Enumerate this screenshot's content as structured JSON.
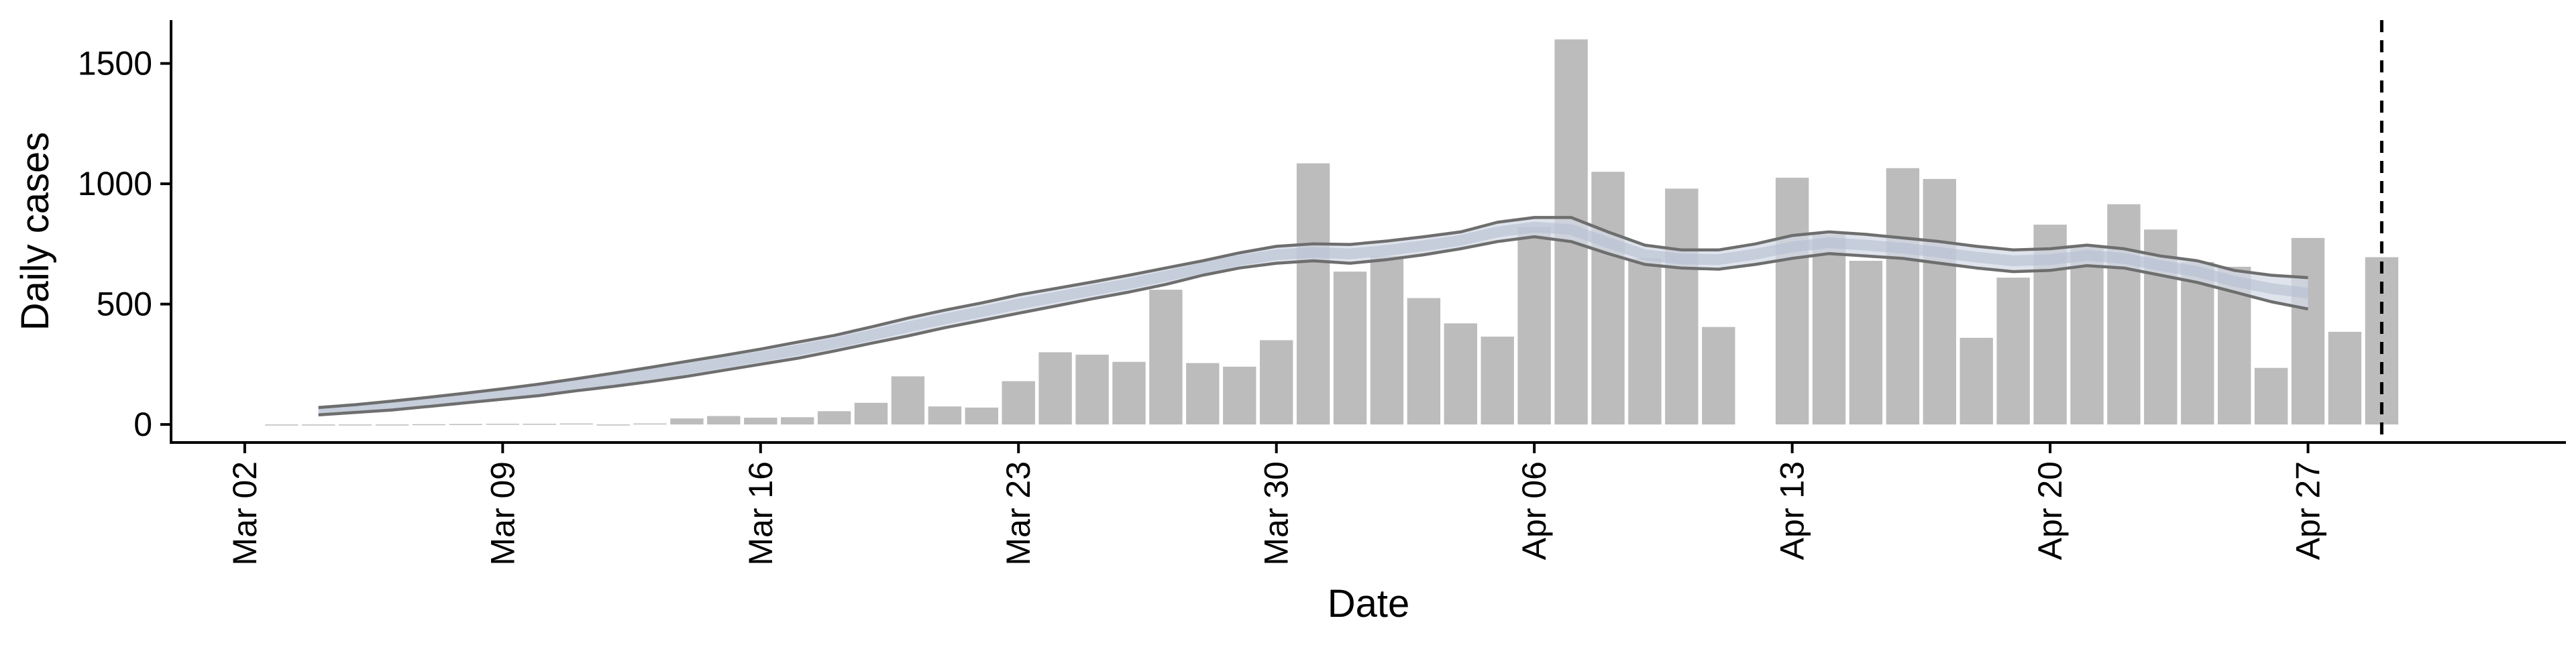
{
  "chart_data": {
    "type": "bar",
    "xlabel": "Date",
    "ylabel": "Daily cases",
    "x_axis": {
      "scale": "date",
      "range": [
        "2020-02-29",
        "2020-05-04"
      ],
      "ticks": [
        "2020-03-02",
        "2020-03-09",
        "2020-03-16",
        "2020-03-23",
        "2020-03-30",
        "2020-04-06",
        "2020-04-13",
        "2020-04-20",
        "2020-04-27"
      ],
      "tick_labels": [
        "Mar 02",
        "Mar 09",
        "Mar 16",
        "Mar 23",
        "Mar 30",
        "Apr 06",
        "Apr 13",
        "Apr 20",
        "Apr 27"
      ]
    },
    "y_axis": {
      "range": [
        -75,
        1680
      ],
      "ticks": [
        0,
        500,
        1000,
        1500
      ],
      "tick_labels": [
        "0",
        "500",
        "1000",
        "1500"
      ]
    },
    "grid": false,
    "legend": "none",
    "colors": {
      "bars": "#bcbcbc",
      "ribbon_fill": "#d3d9e6",
      "ribbon_center": "#b6bed0",
      "bound_lines": "#6e6e6e",
      "vline": "#000000",
      "axes": "#000000"
    },
    "daily_cases": {
      "start_date": "2020-03-03",
      "values": [
        0,
        0,
        0,
        0,
        1,
        2,
        3,
        3,
        4,
        0,
        4,
        25,
        35,
        28,
        30,
        55,
        90,
        200,
        75,
        70,
        180,
        300,
        290,
        260,
        560,
        255,
        240,
        350,
        1085,
        635,
        700,
        525,
        420,
        365,
        820,
        1600,
        1050,
        690,
        980,
        405,
        null,
        1025,
        790,
        680,
        1065,
        1020,
        360,
        610,
        830,
        745,
        915,
        810,
        675,
        655,
        235,
        775,
        385,
        695
      ]
    },
    "estimate_band": {
      "start_date": "2020-03-04",
      "upper": [
        70,
        82,
        97,
        113,
        130,
        148,
        168,
        190,
        213,
        237,
        262,
        287,
        313,
        342,
        370,
        405,
        442,
        475,
        505,
        538,
        565,
        592,
        620,
        650,
        680,
        713,
        740,
        750,
        748,
        762,
        780,
        800,
        840,
        860,
        860,
        800,
        745,
        725,
        725,
        750,
        785,
        800,
        790,
        775,
        760,
        740,
        725,
        730,
        745,
        730,
        700,
        680,
        640,
        620,
        610
      ],
      "lower": [
        40,
        50,
        60,
        75,
        90,
        105,
        120,
        140,
        158,
        178,
        200,
        225,
        250,
        275,
        305,
        337,
        368,
        402,
        432,
        462,
        492,
        522,
        550,
        582,
        620,
        650,
        670,
        680,
        670,
        685,
        705,
        730,
        760,
        780,
        760,
        710,
        665,
        650,
        645,
        665,
        690,
        710,
        700,
        690,
        670,
        650,
        635,
        640,
        660,
        650,
        620,
        590,
        550,
        510,
        480
      ]
    },
    "vline_date": "2020-04-29"
  }
}
